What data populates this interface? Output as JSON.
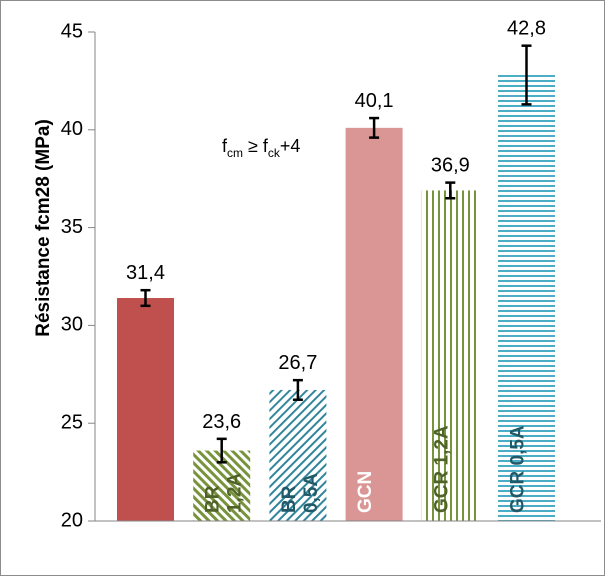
{
  "chart_data": {
    "type": "bar",
    "title": "",
    "xlabel": "",
    "ylabel": "Résistance fcm28 (MPa)",
    "ylim": [
      20,
      45
    ],
    "yticks": [
      20,
      25,
      30,
      35,
      40,
      45
    ],
    "grid": false,
    "categories": [
      "",
      "BR 1,2A",
      "BR 0,5A",
      "GCN",
      "GCR 1,2A",
      "GCR 0,5A"
    ],
    "values": [
      31.4,
      23.6,
      26.7,
      40.1,
      36.9,
      42.8
    ],
    "value_labels": [
      "31,4",
      "23,6",
      "26,7",
      "40,1",
      "36,9",
      "42,8"
    ],
    "errors": [
      0.4,
      0.6,
      0.5,
      0.5,
      0.4,
      1.5
    ],
    "in_bar_labels": [
      {
        "lines": []
      },
      {
        "lines": [
          "BR",
          "1,2A"
        ]
      },
      {
        "lines": [
          "BR",
          "0,5A"
        ]
      },
      {
        "lines": [
          "GCN"
        ]
      },
      {
        "lines": [
          "GCR 1,2A"
        ]
      },
      {
        "lines": [
          "GCR 0,5A"
        ]
      }
    ],
    "styles": [
      {
        "fill": "#c0504d",
        "pattern": "solid"
      },
      {
        "fill": "#77933c",
        "pattern": "diag-up"
      },
      {
        "fill": "#31859c",
        "pattern": "diag-down"
      },
      {
        "fill": "#d99694",
        "pattern": "solid"
      },
      {
        "fill": "#77933c",
        "pattern": "vertical"
      },
      {
        "fill": "#4bacc6",
        "pattern": "horizontal"
      }
    ],
    "in_bar_text_colors": [
      "#ffffff",
      "#4f6228",
      "#215968",
      "#ffffff",
      "#4f6228",
      "#215968"
    ],
    "annotation": {
      "base1": "f",
      "sub1": "cm",
      "op": " ≥ ",
      "base2": "f",
      "sub2": "ck",
      "tail": "+4"
    }
  }
}
